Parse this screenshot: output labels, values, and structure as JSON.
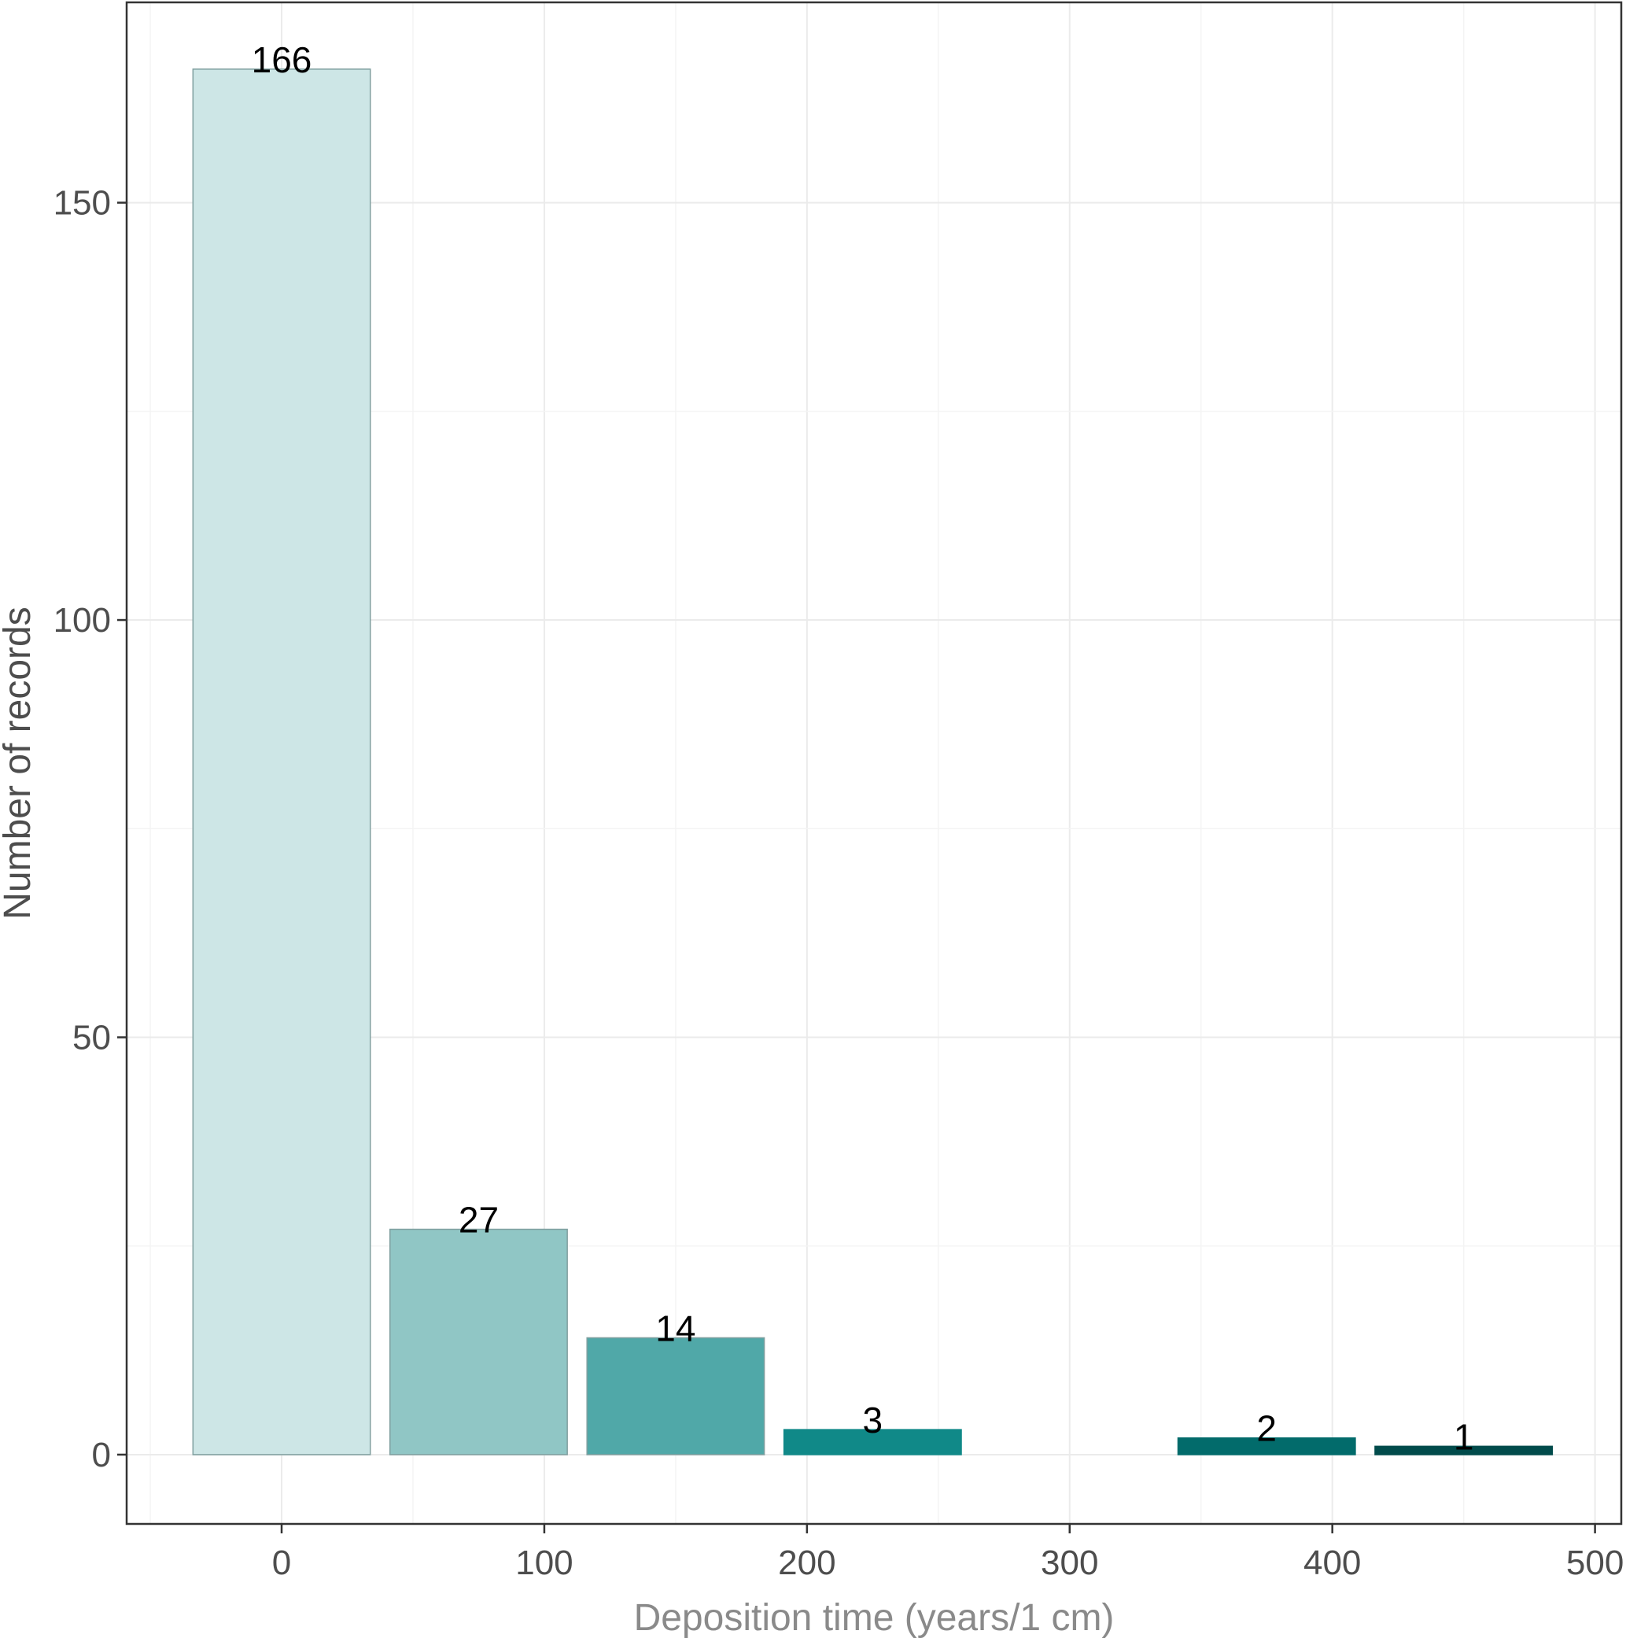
{
  "chart_data": {
    "type": "bar",
    "title": "",
    "xlabel": "Deposition time (years/1 cm)",
    "ylabel": "Number of records",
    "xlim": [
      -59,
      510
    ],
    "ylim": [
      -8.3,
      174
    ],
    "x_ticks": [
      0,
      100,
      200,
      300,
      400,
      500
    ],
    "y_ticks": [
      0,
      50,
      100,
      150
    ],
    "grid": true,
    "bar_width": 67.5,
    "bars": [
      {
        "x": 0,
        "value": 166,
        "label": "166",
        "color": "#cde6e6"
      },
      {
        "x": 75,
        "value": 27,
        "label": "27",
        "color": "#90c6c5"
      },
      {
        "x": 150,
        "value": 14,
        "label": "14",
        "color": "#50a8a8"
      },
      {
        "x": 225,
        "value": 3,
        "label": "3",
        "color": "#108988"
      },
      {
        "x": 375,
        "value": 2,
        "label": "2",
        "color": "#026b6b"
      },
      {
        "x": 450,
        "value": 1,
        "label": "1",
        "color": "#014b4b"
      }
    ]
  }
}
